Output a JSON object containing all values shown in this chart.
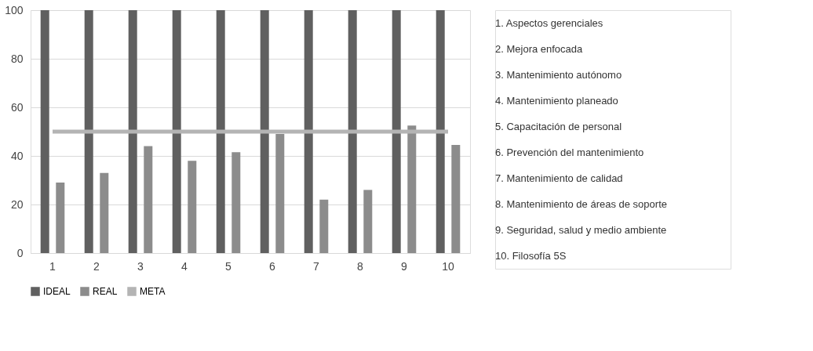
{
  "chart_data": {
    "type": "bar",
    "categories": [
      "1",
      "2",
      "3",
      "4",
      "5",
      "6",
      "7",
      "8",
      "9",
      "10"
    ],
    "series": [
      {
        "name": "IDEAL",
        "color": "#606060",
        "values": [
          100,
          100,
          100,
          100,
          100,
          100,
          100,
          100,
          100,
          100
        ]
      },
      {
        "name": "REAL",
        "color": "#8c8c8c",
        "values": [
          29,
          33,
          44,
          38,
          41.5,
          49,
          22,
          26,
          52.5,
          44.5
        ]
      },
      {
        "name": "META",
        "color": "#b4b4b4",
        "type": "line",
        "values": [
          50,
          50,
          50,
          50,
          50,
          50,
          50,
          50,
          50,
          50
        ]
      }
    ],
    "ylim": [
      0,
      100
    ],
    "yticks": [
      0,
      20,
      40,
      60,
      80,
      100
    ],
    "grid": "y",
    "legend": "bottom",
    "annotations": [
      "1. Aspectos gerenciales",
      "2. Mejora enfocada",
      "3. Mantenimiento autónomo",
      "4. Mantenimiento planeado",
      "5. Capacitación de personal",
      "6. Prevención del mantenimiento",
      "7. Mantenimiento de calidad",
      "8. Mantenimiento de áreas de soporte",
      "9. Seguridad, salud y medio ambiente",
      "10. Filosofía 5S"
    ]
  }
}
